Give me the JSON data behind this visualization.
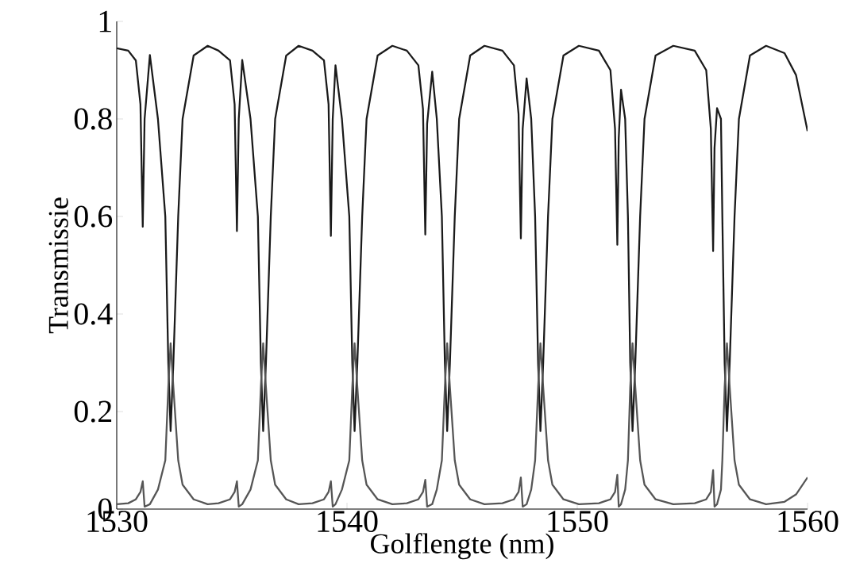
{
  "chart_data": {
    "type": "line",
    "xlabel": "Golflengte (nm)",
    "ylabel": "Transmissie",
    "x": [
      1530,
      1530.5,
      1530.83,
      1531.03,
      1531.13,
      1531.21,
      1531.44,
      1531.79,
      1532.11,
      1532.24,
      1532.34,
      1532.46,
      1532.67,
      1532.86,
      1533.34,
      1533.95,
      1534.42,
      1534.92,
      1535.12,
      1535.22,
      1535.3,
      1535.45,
      1535.81,
      1536.13,
      1536.26,
      1536.36,
      1536.48,
      1536.69,
      1536.88,
      1537.36,
      1537.9,
      1538.5,
      1539.0,
      1539.2,
      1539.3,
      1539.38,
      1539.5,
      1539.78,
      1540.1,
      1540.23,
      1540.33,
      1540.45,
      1540.66,
      1540.85,
      1541.33,
      1541.97,
      1542.6,
      1543.1,
      1543.3,
      1543.4,
      1543.48,
      1543.7,
      1543.9,
      1544.12,
      1544.25,
      1544.35,
      1544.47,
      1544.68,
      1544.87,
      1545.35,
      1545.97,
      1546.75,
      1547.25,
      1547.45,
      1547.55,
      1547.63,
      1547.8,
      1548.0,
      1548.17,
      1548.3,
      1548.4,
      1548.52,
      1548.73,
      1548.92,
      1549.4,
      1550.07,
      1550.94,
      1551.44,
      1551.64,
      1551.74,
      1551.8,
      1551.9,
      1552.08,
      1552.2,
      1552.3,
      1552.4,
      1552.52,
      1552.73,
      1552.92,
      1553.4,
      1554.17,
      1555.1,
      1555.6,
      1555.8,
      1555.9,
      1555.96,
      1556.07,
      1556.24,
      1556.3,
      1556.4,
      1556.5,
      1556.62,
      1556.83,
      1557.02,
      1557.5,
      1558.2,
      1559.0,
      1559.5,
      1560
    ],
    "series": [
      {
        "color": "#1a1a1a",
        "values": [
          0.945,
          0.94,
          0.92,
          0.83,
          0.579,
          0.8,
          0.931,
          0.8,
          0.6,
          0.3,
          0.16,
          0.3,
          0.6,
          0.8,
          0.93,
          0.95,
          0.94,
          0.92,
          0.83,
          0.57,
          0.8,
          0.921,
          0.8,
          0.6,
          0.3,
          0.16,
          0.3,
          0.6,
          0.8,
          0.93,
          0.95,
          0.94,
          0.92,
          0.83,
          0.56,
          0.8,
          0.91,
          0.8,
          0.6,
          0.3,
          0.16,
          0.3,
          0.6,
          0.8,
          0.93,
          0.95,
          0.94,
          0.91,
          0.82,
          0.563,
          0.79,
          0.897,
          0.8,
          0.6,
          0.3,
          0.16,
          0.3,
          0.6,
          0.8,
          0.93,
          0.95,
          0.94,
          0.91,
          0.81,
          0.555,
          0.78,
          0.883,
          0.8,
          0.6,
          0.3,
          0.16,
          0.3,
          0.6,
          0.8,
          0.93,
          0.95,
          0.94,
          0.9,
          0.78,
          0.542,
          0.76,
          0.86,
          0.8,
          0.6,
          0.3,
          0.16,
          0.3,
          0.6,
          0.8,
          0.93,
          0.95,
          0.94,
          0.9,
          0.78,
          0.529,
          0.74,
          0.822,
          0.8,
          0.6,
          0.3,
          0.16,
          0.3,
          0.6,
          0.8,
          0.93,
          0.95,
          0.935,
          0.89,
          0.775
        ]
      },
      {
        "color": "#555555",
        "values": [
          0.01,
          0.012,
          0.02,
          0.035,
          0.057,
          0.005,
          0.01,
          0.04,
          0.1,
          0.25,
          0.34,
          0.25,
          0.1,
          0.05,
          0.02,
          0.01,
          0.012,
          0.02,
          0.035,
          0.057,
          0.005,
          0.01,
          0.04,
          0.1,
          0.25,
          0.34,
          0.25,
          0.1,
          0.05,
          0.02,
          0.01,
          0.012,
          0.02,
          0.035,
          0.057,
          0.005,
          0.01,
          0.04,
          0.1,
          0.25,
          0.34,
          0.25,
          0.1,
          0.05,
          0.02,
          0.01,
          0.012,
          0.02,
          0.035,
          0.06,
          0.005,
          0.01,
          0.04,
          0.1,
          0.25,
          0.34,
          0.25,
          0.1,
          0.05,
          0.02,
          0.01,
          0.012,
          0.02,
          0.035,
          0.065,
          0.005,
          0.01,
          0.04,
          0.1,
          0.25,
          0.34,
          0.25,
          0.1,
          0.05,
          0.02,
          0.01,
          0.012,
          0.02,
          0.035,
          0.07,
          0.005,
          0.01,
          0.04,
          0.1,
          0.25,
          0.34,
          0.25,
          0.1,
          0.05,
          0.02,
          0.01,
          0.012,
          0.02,
          0.035,
          0.08,
          0.005,
          0.01,
          0.04,
          0.1,
          0.25,
          0.34,
          0.25,
          0.1,
          0.05,
          0.02,
          0.01,
          0.015,
          0.03,
          0.065
        ]
      }
    ],
    "xlim": [
      1530,
      1560
    ],
    "ylim": [
      0,
      1
    ],
    "xticks": [
      1530,
      1540,
      1550,
      1560
    ],
    "yticks": [
      0,
      0.2,
      0.4,
      0.6,
      0.8,
      1
    ]
  }
}
